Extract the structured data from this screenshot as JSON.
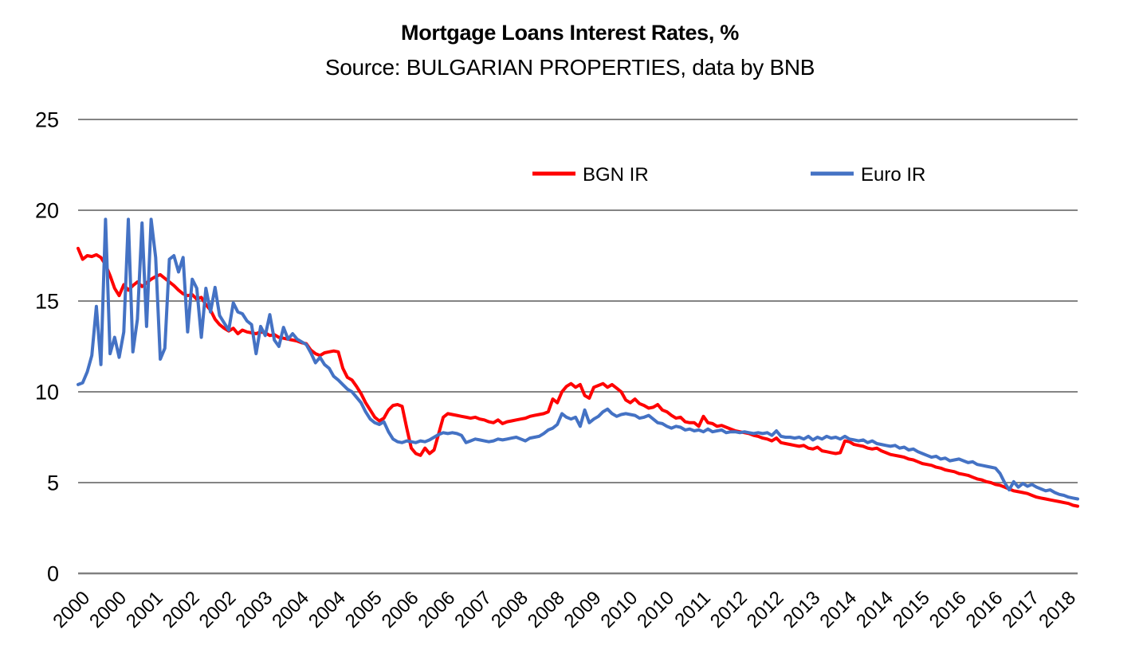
{
  "chart": {
    "title": "Mortgage Loans Interest Rates, %",
    "subtitle": "Source: BULGARIAN PROPERTIES, data by BNB",
    "colors": {
      "bgn_line": "#FF0000",
      "euro_line": "#4472C4",
      "gridline": "#848484",
      "axis_line": "#808080",
      "text": "#000000",
      "background": "#FFFFFF"
    }
  },
  "chart_data": {
    "type": "line",
    "title": "Mortgage Loans Interest Rates, %",
    "subtitle": "Source: BULGARIAN PROPERTIES, data by BNB",
    "x_start": "2000-01",
    "x_end": "2018-04",
    "x_interval": "monthly",
    "x_tick_every_months": 8,
    "x_tick_labels": [
      "2000",
      "2000",
      "2001",
      "2002",
      "2002",
      "2003",
      "2004",
      "2004",
      "2005",
      "2006",
      "2006",
      "2007",
      "2008",
      "2008",
      "2009",
      "2010",
      "2010",
      "2011",
      "2012",
      "2012",
      "2013",
      "2014",
      "2014",
      "2015",
      "2016",
      "2016",
      "2017",
      "2018"
    ],
    "ylim": [
      0,
      25
    ],
    "y_ticks": [
      0,
      5,
      10,
      15,
      20,
      25
    ],
    "grid": "horizontal",
    "legend_position": "top-center",
    "series": [
      {
        "name": "BGN IR",
        "color": "#FF0000",
        "values": [
          17.9,
          17.3,
          17.5,
          17.45,
          17.55,
          17.4,
          17.0,
          16.4,
          15.7,
          15.3,
          15.9,
          15.6,
          15.85,
          16.05,
          15.8,
          16.0,
          16.2,
          16.35,
          16.45,
          16.25,
          16.05,
          15.85,
          15.6,
          15.4,
          15.3,
          15.35,
          15.1,
          15.2,
          14.8,
          14.5,
          14.0,
          13.7,
          13.5,
          13.35,
          13.5,
          13.2,
          13.4,
          13.3,
          13.25,
          13.2,
          13.3,
          13.25,
          13.1,
          13.15,
          13.0,
          12.95,
          12.9,
          12.85,
          12.8,
          12.7,
          12.65,
          12.3,
          12.1,
          12.0,
          12.15,
          12.2,
          12.25,
          12.2,
          11.3,
          10.8,
          10.65,
          10.3,
          9.9,
          9.4,
          9.0,
          8.6,
          8.4,
          8.55,
          9.0,
          9.25,
          9.3,
          9.2,
          8.0,
          6.9,
          6.6,
          6.5,
          6.9,
          6.6,
          6.8,
          7.7,
          8.6,
          8.8,
          8.75,
          8.7,
          8.65,
          8.6,
          8.55,
          8.6,
          8.5,
          8.45,
          8.35,
          8.3,
          8.45,
          8.25,
          8.35,
          8.4,
          8.45,
          8.5,
          8.55,
          8.65,
          8.7,
          8.75,
          8.8,
          8.9,
          9.6,
          9.4,
          10.0,
          10.3,
          10.45,
          10.25,
          10.4,
          9.8,
          9.65,
          10.25,
          10.35,
          10.45,
          10.25,
          10.4,
          10.2,
          10.0,
          9.55,
          9.4,
          9.6,
          9.35,
          9.25,
          9.1,
          9.15,
          9.3,
          9.0,
          8.9,
          8.7,
          8.55,
          8.6,
          8.35,
          8.3,
          8.3,
          8.1,
          8.65,
          8.3,
          8.25,
          8.1,
          8.15,
          8.05,
          7.95,
          7.85,
          7.8,
          7.75,
          7.7,
          7.6,
          7.55,
          7.45,
          7.4,
          7.3,
          7.45,
          7.2,
          7.15,
          7.1,
          7.05,
          7.0,
          7.05,
          6.9,
          6.85,
          6.95,
          6.75,
          6.7,
          6.65,
          6.6,
          6.65,
          7.3,
          7.25,
          7.1,
          7.05,
          7.0,
          6.9,
          6.85,
          6.9,
          6.75,
          6.65,
          6.55,
          6.5,
          6.45,
          6.4,
          6.3,
          6.25,
          6.15,
          6.05,
          6.0,
          5.95,
          5.85,
          5.8,
          5.7,
          5.65,
          5.6,
          5.5,
          5.45,
          5.4,
          5.3,
          5.2,
          5.15,
          5.05,
          5.0,
          4.9,
          4.85,
          4.75,
          4.65,
          4.55,
          4.5,
          4.45,
          4.4,
          4.3,
          4.2,
          4.15,
          4.1,
          4.05,
          4.0,
          3.95,
          3.9,
          3.85,
          3.75,
          3.7
        ]
      },
      {
        "name": "Euro IR",
        "color": "#4472C4",
        "values": [
          10.4,
          10.5,
          11.1,
          12.0,
          14.7,
          11.5,
          19.5,
          12.1,
          13.0,
          11.9,
          13.3,
          19.5,
          12.2,
          14.0,
          19.3,
          13.6,
          19.5,
          17.4,
          11.8,
          12.4,
          17.3,
          17.5,
          16.6,
          17.4,
          13.3,
          16.2,
          15.7,
          13.0,
          15.7,
          14.4,
          15.75,
          14.2,
          13.8,
          13.4,
          14.9,
          14.4,
          14.3,
          13.9,
          13.7,
          12.1,
          13.6,
          13.1,
          14.25,
          12.85,
          12.5,
          13.55,
          12.9,
          13.2,
          12.9,
          12.75,
          12.6,
          12.15,
          11.6,
          11.9,
          11.5,
          11.3,
          10.85,
          10.65,
          10.4,
          10.15,
          10.0,
          9.7,
          9.4,
          8.9,
          8.5,
          8.3,
          8.2,
          8.35,
          7.8,
          7.4,
          7.25,
          7.2,
          7.3,
          7.25,
          7.2,
          7.3,
          7.25,
          7.35,
          7.5,
          7.65,
          7.75,
          7.7,
          7.75,
          7.7,
          7.6,
          7.2,
          7.3,
          7.4,
          7.35,
          7.3,
          7.25,
          7.3,
          7.4,
          7.35,
          7.4,
          7.45,
          7.5,
          7.4,
          7.3,
          7.45,
          7.5,
          7.55,
          7.7,
          7.9,
          8.0,
          8.2,
          8.8,
          8.6,
          8.5,
          8.6,
          8.1,
          9.0,
          8.3,
          8.5,
          8.65,
          8.9,
          9.05,
          8.8,
          8.65,
          8.75,
          8.8,
          8.75,
          8.7,
          8.55,
          8.6,
          8.7,
          8.5,
          8.3,
          8.25,
          8.1,
          8.0,
          8.1,
          8.05,
          7.9,
          7.95,
          7.85,
          7.9,
          7.8,
          7.95,
          7.8,
          7.85,
          7.9,
          7.75,
          7.8,
          7.8,
          7.75,
          7.8,
          7.75,
          7.7,
          7.75,
          7.7,
          7.75,
          7.6,
          7.85,
          7.55,
          7.5,
          7.5,
          7.45,
          7.5,
          7.4,
          7.55,
          7.35,
          7.5,
          7.4,
          7.55,
          7.45,
          7.5,
          7.4,
          7.55,
          7.4,
          7.35,
          7.3,
          7.35,
          7.2,
          7.3,
          7.15,
          7.1,
          7.05,
          7.0,
          7.05,
          6.9,
          6.95,
          6.8,
          6.85,
          6.7,
          6.6,
          6.5,
          6.4,
          6.45,
          6.3,
          6.35,
          6.2,
          6.25,
          6.3,
          6.2,
          6.1,
          6.15,
          6.0,
          5.95,
          5.9,
          5.85,
          5.8,
          5.5,
          5.0,
          4.6,
          5.05,
          4.75,
          4.95,
          4.8,
          4.9,
          4.75,
          4.65,
          4.55,
          4.6,
          4.45,
          4.35,
          4.3,
          4.2,
          4.15,
          4.1
        ]
      }
    ]
  }
}
